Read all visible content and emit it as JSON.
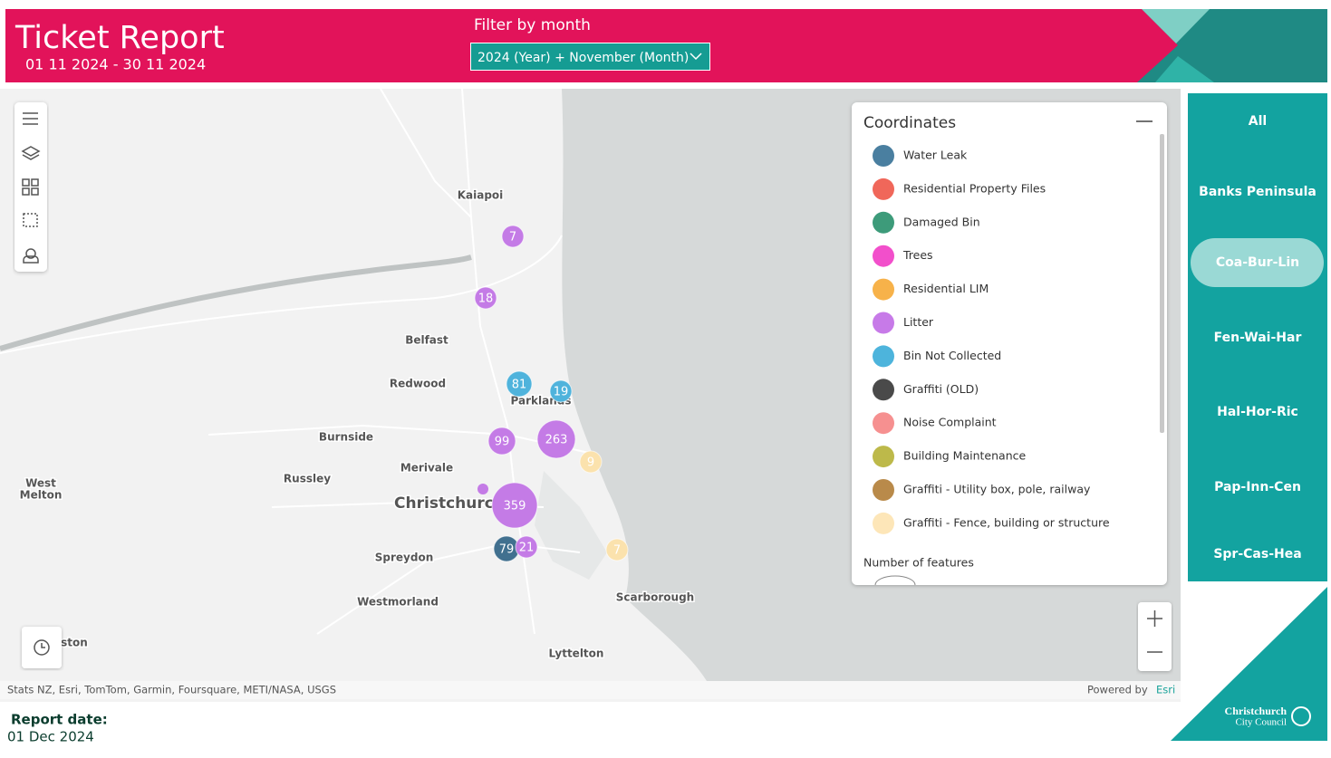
{
  "header": {
    "title": "Ticket Report",
    "date_range": "01 11 2024 - 30 11 2024",
    "filter_label": "Filter by month",
    "filter_value": "2024 (Year) + November (Month)"
  },
  "map": {
    "places": [
      "Kaiapoi",
      "Belfast",
      "Redwood",
      "Parklands",
      "Burnside",
      "Merivale",
      "Russley",
      "West",
      "Melton",
      "Christchurch",
      "Spreydon",
      "Westmorland",
      "Scarborough",
      "Lyttelton",
      "ston"
    ],
    "clusters": [
      {
        "count": 7,
        "color": "#c47be6"
      },
      {
        "count": 18,
        "color": "#c47be6"
      },
      {
        "count": 81,
        "color": "#4fb3dc"
      },
      {
        "count": 19,
        "color": "#4fb3dc"
      },
      {
        "count": 99,
        "color": "#c47be6"
      },
      {
        "count": 263,
        "color": "#c47be6"
      },
      {
        "count": 9,
        "color": "#fbe2ad"
      },
      {
        "count": 359,
        "color": "#c47be6"
      },
      {
        "count": 79,
        "color": "#41708f"
      },
      {
        "count": 21,
        "color": "#c47be6"
      },
      {
        "count": 7,
        "color": "#fbe2ad"
      }
    ],
    "attribution": "Stats NZ, Esri, TomTom, Garmin, Foursquare, METI/NASA, USGS",
    "powered_by": "Powered by",
    "esri": "Esri"
  },
  "legend": {
    "title": "Coordinates",
    "items": [
      {
        "name": "Water Leak",
        "color": "#4a7fa0"
      },
      {
        "name": "Residential Property Files",
        "color": "#f0675a"
      },
      {
        "name": "Damaged Bin",
        "color": "#3d9b7a"
      },
      {
        "name": "Trees",
        "color": "#f24fcb"
      },
      {
        "name": "Residential LIM",
        "color": "#f7b24a"
      },
      {
        "name": "Litter",
        "color": "#c77ae8"
      },
      {
        "name": "Bin Not Collected",
        "color": "#4db4dc"
      },
      {
        "name": "Graffiti (OLD)",
        "color": "#4a4a4a"
      },
      {
        "name": "Noise Complaint",
        "color": "#f69090"
      },
      {
        "name": "Building Maintenance",
        "color": "#bdb94a"
      },
      {
        "name": "Graffiti - Utility box, pole, railway",
        "color": "#b98a4a"
      },
      {
        "name": "Graffiti - Fence, building or structure",
        "color": "#fde6b8"
      }
    ],
    "size_title": "Number of features"
  },
  "sidebar": {
    "buttons": [
      "All",
      "Banks Peninsula",
      "Coa-Bur-Lin",
      "Fen-Wai-Har",
      "Hal-Hor-Ric",
      "Pap-Inn-Cen",
      "Spr-Cas-Hea"
    ]
  },
  "logo": {
    "line1": "Christchurch",
    "line2": "City Council"
  },
  "footer": {
    "label": "Report date:",
    "date": "01 Dec 2024"
  }
}
